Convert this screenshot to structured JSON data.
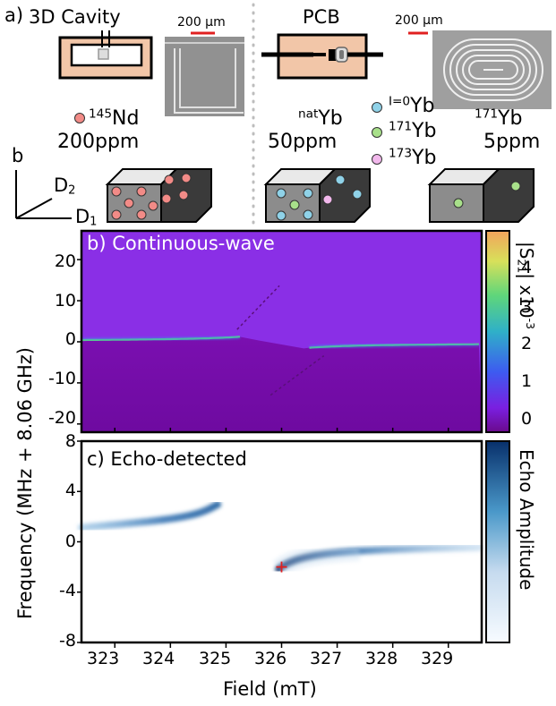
{
  "panel_a": {
    "label": "a)",
    "cavity_label": "3D Cavity",
    "pcb_label": "PCB",
    "scale_left": "200 μm",
    "scale_right": "200 μm",
    "samples": [
      {
        "sup": "145",
        "element": "Nd",
        "conc": "200ppm",
        "dot_color": "#f28b87",
        "dot_count": 10
      },
      {
        "sup": "nat",
        "element": "Yb",
        "conc": "50ppm"
      },
      {
        "sup": "171",
        "element": "Yb",
        "conc": "5ppm"
      }
    ],
    "legend": [
      {
        "sup": "I=0",
        "element": "Yb",
        "color": "#8fd2e8"
      },
      {
        "sup": "171",
        "element": "Yb",
        "color": "#a8e08a"
      },
      {
        "sup": "173",
        "element": "Yb",
        "color": "#f2b8ec"
      }
    ],
    "axes": {
      "b": "b",
      "d2": "D",
      "d2_sub": "2",
      "d1": "D",
      "d1_sub": "1"
    }
  },
  "panel_b": {
    "label": "b) Continuous-wave",
    "yticks": [
      "20",
      "10",
      "0",
      "-10",
      "-20"
    ],
    "colorbar_ticks": [
      "4",
      "3",
      "2",
      "1",
      "0"
    ],
    "colorbar_label_main": "|S",
    "colorbar_label_sub": "21",
    "colorbar_label_end": "| x10",
    "colorbar_label_exp": "-3"
  },
  "panel_c": {
    "label": "c) Echo-detected",
    "yticks": [
      "8",
      "4",
      "0",
      "-4",
      "-8"
    ],
    "colorbar_label": "Echo Amplitude"
  },
  "shared": {
    "ylabel": "Frequency (MHz + 8.06 GHz)",
    "xlabel": "Field (mT)",
    "xticks": [
      "323",
      "324",
      "325",
      "326",
      "327",
      "328",
      "329"
    ]
  },
  "chart_data": [
    {
      "type": "heatmap",
      "title": "b) Continuous-wave",
      "xlabel": "Field (mT)",
      "ylabel": "Frequency (MHz + 8.06 GHz)",
      "xlim": [
        322.4,
        329.6
      ],
      "ylim": [
        -22,
        27
      ],
      "colorbar": {
        "label": "|S21| x10^-3",
        "range": [
          -0.5,
          4.9
        ]
      },
      "features": {
        "anticrossing_center_field": 326.0,
        "resonance_branch_upper_at_323": 1.6,
        "resonance_branch_lower_at_329": -0.3
      }
    },
    {
      "type": "heatmap",
      "title": "c) Echo-detected",
      "xlabel": "Field (mT)",
      "ylabel": "Frequency (MHz + 8.06 GHz)",
      "xlim": [
        322.4,
        329.6
      ],
      "ylim": [
        -8,
        8
      ],
      "colorbar": {
        "label": "Echo Amplitude"
      },
      "marker": {
        "field": 326.0,
        "frequency": -2.0,
        "symbol": "+",
        "color": "#e02020"
      }
    }
  ]
}
